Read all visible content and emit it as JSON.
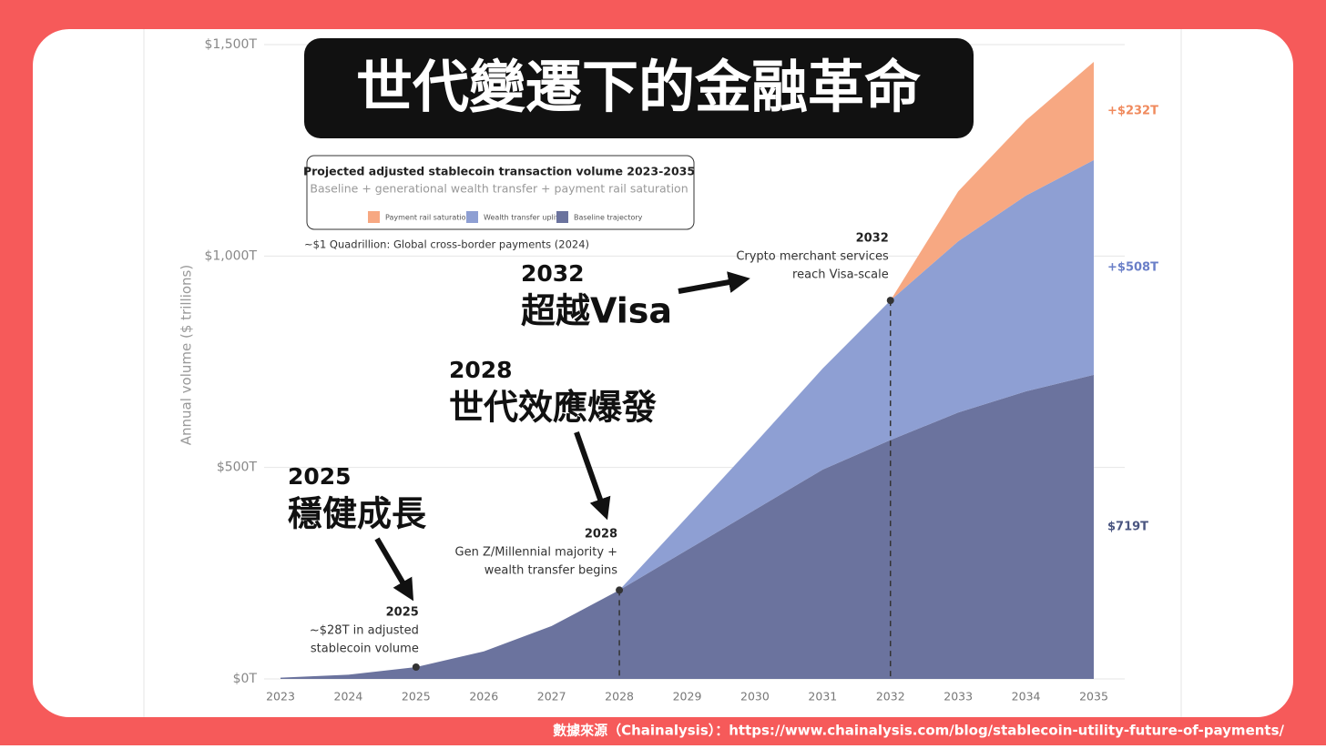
{
  "chart_data": {
    "type": "stacked_area",
    "title": "Projected adjusted stablecoin transaction volume 2023-2035",
    "subtitle": "Baseline + generational wealth transfer + payment rail saturation",
    "y_label": "Annual volume ($ trillions)",
    "reference_note": "~$1 Quadrillion: Global cross-border payments (2024)",
    "categories": [
      "2023",
      "2024",
      "2025",
      "2026",
      "2027",
      "2028",
      "2029",
      "2030",
      "2031",
      "2032",
      "2033",
      "2034",
      "2035"
    ],
    "series": [
      {
        "name": "Baseline trajectory",
        "color": "#6b739e",
        "label_color": "#4a5580",
        "values": [
          3,
          10,
          28,
          65,
          125,
          210,
          305,
          400,
          495,
          565,
          630,
          680,
          719
        ],
        "value_labels": [
          null,
          null,
          null,
          null,
          null,
          null,
          null,
          null,
          null,
          null,
          null,
          null,
          "$719T"
        ]
      },
      {
        "name": "Wealth transfer uplift",
        "color": "#8e9fd3",
        "label_color": "#6a7fc8",
        "values": [
          0,
          0,
          0,
          0,
          0,
          0,
          78,
          157,
          239,
          330,
          405,
          463,
          508
        ],
        "value_labels": [
          null,
          null,
          null,
          null,
          null,
          null,
          null,
          null,
          null,
          null,
          null,
          null,
          "+$508T"
        ]
      },
      {
        "name": "Payment rail saturation",
        "color": "#f7a882",
        "label_color": "#f08a5d",
        "values": [
          0,
          0,
          0,
          0,
          0,
          0,
          0,
          0,
          0,
          0,
          118,
          178,
          232
        ],
        "value_labels": [
          null,
          null,
          null,
          null,
          null,
          null,
          null,
          null,
          null,
          null,
          null,
          null,
          "+$232T"
        ]
      }
    ],
    "ylim": [
      0,
      1500
    ],
    "yticks": [
      {
        "value": 0,
        "label": "$0T"
      },
      {
        "value": 500,
        "label": "$500T"
      },
      {
        "value": 1000,
        "label": "$1,000T"
      },
      {
        "value": 1500,
        "label": "$1,500T"
      }
    ],
    "grid": true,
    "annotations": [
      {
        "index": 2,
        "stack": 1,
        "title": "2025",
        "lines": [
          "~$28T in adjusted",
          "stablecoin volume"
        ]
      },
      {
        "index": 5,
        "stack": 1,
        "title": "2028",
        "lines": [
          "Gen Z/Millennial majority +",
          "wealth transfer begins"
        ]
      },
      {
        "index": 9,
        "stack": 2,
        "title": "2032",
        "lines": [
          "Crypto merchant services",
          "reach Visa-scale"
        ]
      }
    ]
  },
  "overlay": {
    "headline": "世代變遷下的金融革命",
    "callouts": [
      {
        "year": "2025",
        "text": "穩健成長"
      },
      {
        "year": "2028",
        "text": "世代效應爆發"
      },
      {
        "year": "2032",
        "text": "超越Visa"
      }
    ],
    "source": "數據來源（Chainalysis）：https://www.chainalysis.com/blog/stablecoin-utility-future-of-payments/"
  }
}
